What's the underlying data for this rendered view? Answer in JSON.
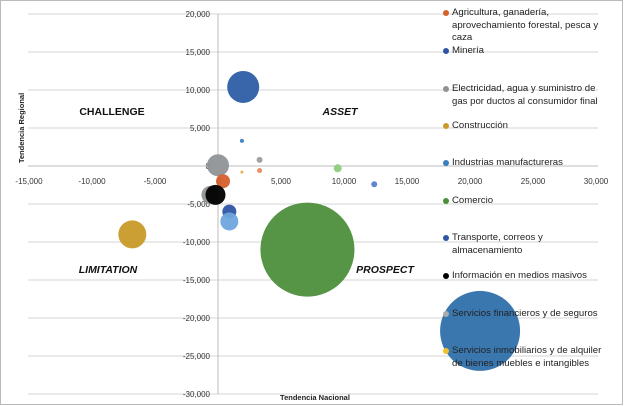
{
  "chart_data": {
    "type": "bubble",
    "xlabel": "Tendencia Nacional",
    "ylabel": "Tendencia Regional",
    "xlim": [
      -15000,
      30000
    ],
    "ylim": [
      -30000,
      20000
    ],
    "xticks": [
      "-15,000",
      "-10,000",
      "-5,000",
      "0",
      "5,000",
      "10,000",
      "15,000",
      "20,000",
      "25,000",
      "30,000"
    ],
    "yticks": [
      "20,000",
      "15,000",
      "10,000",
      "5,000",
      "0",
      "-5,000",
      "-10,000",
      "-15,000",
      "-20,000",
      "-25,000",
      "-30,000"
    ],
    "grid": "horizontal",
    "legend_position": "right",
    "quadrants": {
      "top_left": "CHALLENGE",
      "top_right": "ASSET",
      "bottom_left": "LIMITATION",
      "bottom_right": "PROSPECT"
    },
    "points": [
      {
        "series": "Minería",
        "x": 2000,
        "y": 10400,
        "size": 16,
        "color": "#2e5ea6"
      },
      {
        "series": "Comercio",
        "x": 7100,
        "y": -11000,
        "size": 47,
        "color": "#4c8f3b"
      },
      {
        "series": "Servicios financieros y de seguros",
        "x": 20800,
        "y": -21700,
        "size": 40,
        "color": "#2f70aa"
      },
      {
        "series": "Construcción",
        "x": -6800,
        "y": -9000,
        "size": 14,
        "color": "#c99a2a"
      },
      {
        "series": "Electricidad, agua y suministro de gas por ductos al consumidor final",
        "x": 0,
        "y": 100,
        "size": 11,
        "color": "#8f9396"
      },
      {
        "series": "Agricultura, ganadería, aprovechamiento forestal, pesca y caza",
        "x": 400,
        "y": -2000,
        "size": 7,
        "color": "#d5602a"
      },
      {
        "series": "Electricidad, agua y suministro de gas por ductos al consumidor final",
        "x": -600,
        "y": -3800,
        "size": 9,
        "color": "#8f9396"
      },
      {
        "series": "Información en medios masivos",
        "x": -200,
        "y": -3800,
        "size": 10,
        "color": "#000000"
      },
      {
        "series": "Transporte, correos y almacenamiento",
        "x": 900,
        "y": -6000,
        "size": 7,
        "color": "#2f55a4"
      },
      {
        "series": "Industrias manufactureras",
        "x": 900,
        "y": -7300,
        "size": 9,
        "color": "#6ea7dc"
      },
      {
        "series": "Industrias manufactureras",
        "x": 1900,
        "y": 3300,
        "size": 2,
        "color": "#3a7fc0"
      },
      {
        "series": "Electricidad, agua y suministro de gas por ductos al consumidor final",
        "x": 3300,
        "y": 800,
        "size": 3,
        "color": "#a09a9a"
      },
      {
        "series": "Agricultura, ganadería, aprovechamiento forestal, pesca y caza",
        "x": 3300,
        "y": -600,
        "size": 2.5,
        "color": "#e88a5e"
      },
      {
        "series": "Construcción",
        "x": 1900,
        "y": -800,
        "size": 1.5,
        "color": "#e2b04a"
      },
      {
        "series": "Comercio",
        "x": 9500,
        "y": -300,
        "size": 4,
        "color": "#8ccf7e"
      },
      {
        "series": "Transporte, correos y almacenamiento",
        "x": 12400,
        "y": -2400,
        "size": 3,
        "color": "#5a7fd0"
      }
    ],
    "legend": [
      {
        "label": "Agricultura, ganadería, aprovechamiento forestal, pesca y caza",
        "color": "#d5602a"
      },
      {
        "label": "Minería",
        "color": "#2f55a4"
      },
      {
        "label": "Electricidad, agua y suministro de gas por ductos al consumidor final",
        "color": "#8f9396"
      },
      {
        "label": "Construcción",
        "color": "#c99a2a"
      },
      {
        "label": "Industrias manufactureras",
        "color": "#3a7fc0"
      },
      {
        "label": "Comercio",
        "color": "#4c8f3b"
      },
      {
        "label": "Transporte, correos y almacenamiento",
        "color": "#2f55a4"
      },
      {
        "label": "Información en medios masivos",
        "color": "#000000"
      },
      {
        "label": "Servicios financieros y de seguros",
        "color": "#a9abad"
      },
      {
        "label": "Servicios inmobiliarios y de alquiler de bienes muebles e intangibles",
        "color": "#f2c02a"
      }
    ]
  }
}
